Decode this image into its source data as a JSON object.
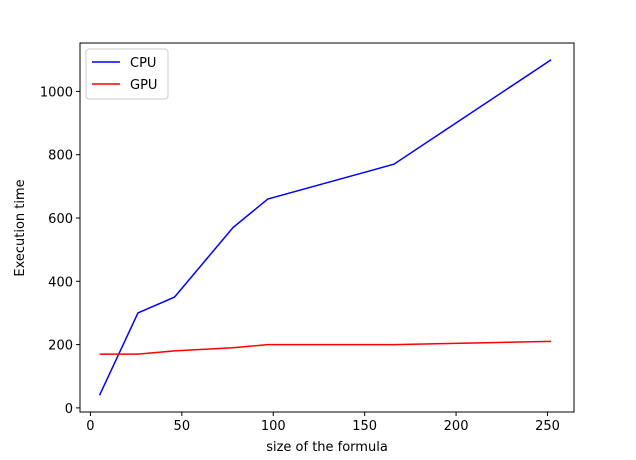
{
  "chart_data": {
    "type": "line",
    "x_label": "size of the formula",
    "y_label": "Execution time",
    "x": [
      5,
      26,
      46,
      78,
      97,
      166,
      252
    ],
    "series": [
      {
        "name": "CPU",
        "color": "#0000ff",
        "values": [
          40,
          300,
          350,
          570,
          660,
          770,
          1100
        ]
      },
      {
        "name": "GPU",
        "color": "#ff0000",
        "values": [
          170,
          170,
          180,
          190,
          200,
          200,
          210
        ]
      }
    ],
    "xlim": [
      -5.7,
      264.5
    ],
    "xticks": [
      0,
      50,
      100,
      150,
      200,
      250
    ],
    "ylim": [
      -13,
      1153
    ],
    "yticks": [
      0,
      200,
      400,
      600,
      800,
      1000
    ],
    "legend": "upper left"
  }
}
